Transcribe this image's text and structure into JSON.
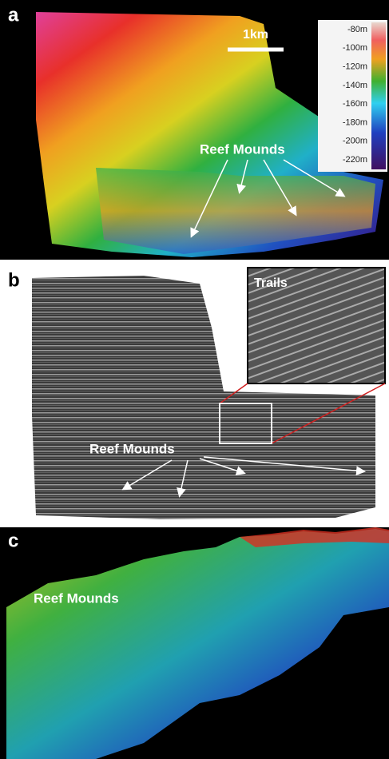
{
  "panels": [
    {
      "label": "a",
      "scale_bar": "1km",
      "colorbar_labels": [
        "-80m",
        "-100m",
        "-120m",
        "-140m",
        "-160m",
        "-180m",
        "-200m",
        "-220m"
      ],
      "annotation": "Reef Mounds"
    },
    {
      "label": "b",
      "inset_title": "Trails",
      "annotation": "Reef Mounds"
    },
    {
      "label": "c",
      "annotation": "Reef Mounds"
    }
  ]
}
